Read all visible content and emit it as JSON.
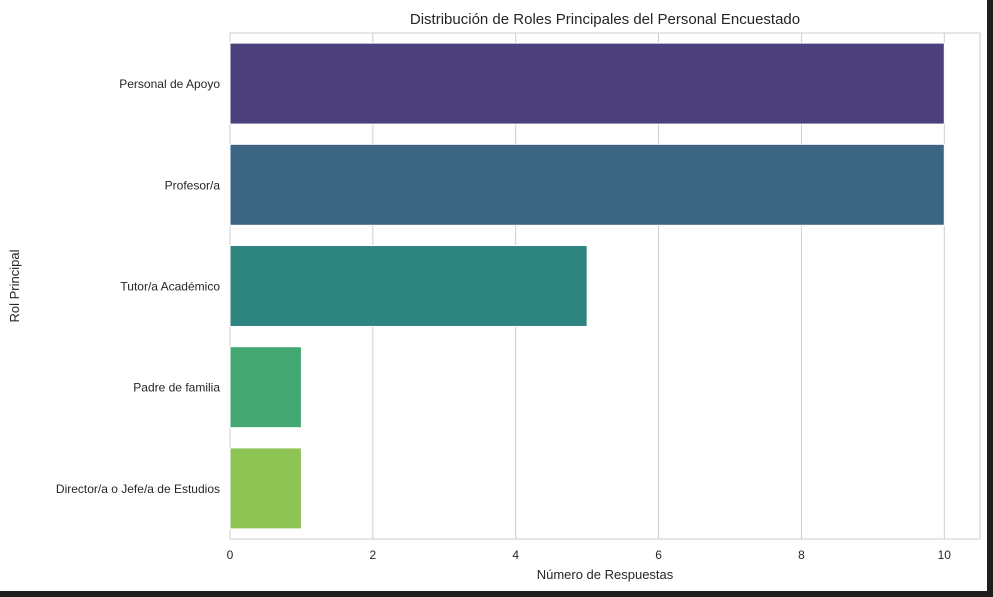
{
  "chart_data": {
    "type": "bar",
    "orientation": "horizontal",
    "title": "Distribución de Roles Principales del Personal Encuestado",
    "xlabel": "Número de Respuestas",
    "ylabel": "Rol Principal",
    "categories": [
      "Personal de Apoyo",
      "Profesor/a",
      "Tutor/a Académico",
      "Padre de familia ",
      "Director/a o Jefe/a de Estudios"
    ],
    "values": [
      10,
      10,
      5,
      1,
      1
    ],
    "colors": [
      "#4b3f7c",
      "#3c6584",
      "#2e857f",
      "#43a871",
      "#8dc454"
    ],
    "xlim": [
      0,
      10.5
    ],
    "xticks": [
      0,
      2,
      4,
      6,
      8,
      10
    ],
    "grid": true,
    "legend": "none"
  }
}
